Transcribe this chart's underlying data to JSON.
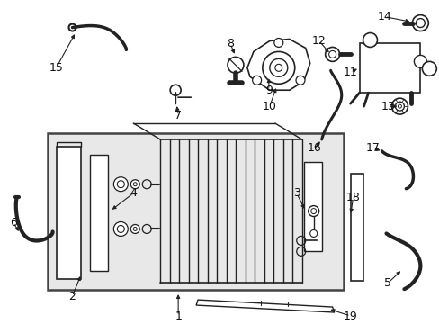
{
  "background_color": "#ffffff",
  "line_color": "#222222",
  "box_fill": "#e8e8e8",
  "box_outline": "#444444",
  "label_color": "#111111",
  "figsize": [
    4.89,
    3.6
  ],
  "dpi": 100
}
